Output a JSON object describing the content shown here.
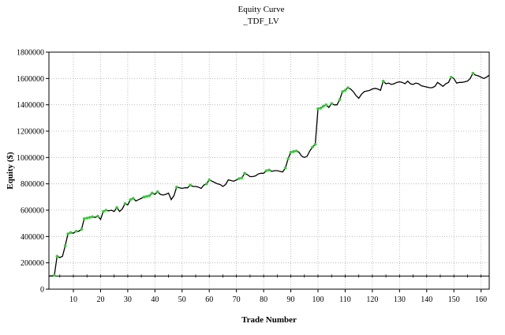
{
  "chart_data": {
    "type": "line",
    "title": "Equity Curve",
    "subtitle": "_TDF_LV",
    "xlabel": "Trade Number",
    "ylabel": "Equity ($)",
    "xlim": [
      1,
      163
    ],
    "ylim": [
      0,
      1800000
    ],
    "x_ticks": [
      10,
      20,
      30,
      40,
      50,
      60,
      70,
      80,
      90,
      100,
      110,
      120,
      130,
      140,
      150,
      160
    ],
    "y_ticks": [
      0,
      200000,
      400000,
      600000,
      800000,
      1000000,
      1200000,
      1400000,
      1600000,
      1800000
    ],
    "grid": true,
    "baseline": 100000,
    "colors": {
      "equity": "#000000",
      "new_high": "#33cc33",
      "grid": "#b0b0b0",
      "baseline": "#000000"
    },
    "series": [
      {
        "values": [
          100000,
          100000,
          105000,
          250000,
          240000,
          250000,
          330000,
          420000,
          430000,
          425000,
          440000,
          440000,
          455000,
          535000,
          540000,
          545000,
          550000,
          545000,
          555000,
          530000,
          590000,
          600000,
          595000,
          600000,
          590000,
          620000,
          590000,
          610000,
          650000,
          640000,
          680000,
          690000,
          670000,
          680000,
          690000,
          700000,
          705000,
          710000,
          730000,
          720000,
          740000,
          720000,
          715000,
          720000,
          730000,
          680000,
          710000,
          775000,
          770000,
          765000,
          770000,
          770000,
          790000,
          780000,
          780000,
          775000,
          765000,
          790000,
          800000,
          830000,
          820000,
          810000,
          800000,
          795000,
          780000,
          795000,
          830000,
          825000,
          820000,
          830000,
          840000,
          845000,
          880000,
          870000,
          855000,
          855000,
          860000,
          875000,
          880000,
          880000,
          900000,
          905000,
          895000,
          900000,
          900000,
          895000,
          890000,
          920000,
          990000,
          1040000,
          1045000,
          1050000,
          1040000,
          1010000,
          1000000,
          1010000,
          1050000,
          1080000,
          1100000,
          1370000,
          1375000,
          1390000,
          1400000,
          1380000,
          1410000,
          1400000,
          1400000,
          1440000,
          1500000,
          1510000,
          1530000,
          1520000,
          1500000,
          1470000,
          1450000,
          1480000,
          1500000,
          1505000,
          1510000,
          1520000,
          1525000,
          1520000,
          1510000,
          1580000,
          1560000,
          1565000,
          1555000,
          1560000,
          1570000,
          1575000,
          1570000,
          1560000,
          1580000,
          1560000,
          1555000,
          1565000,
          1560000,
          1545000,
          1540000,
          1535000,
          1530000,
          1530000,
          1540000,
          1570000,
          1555000,
          1540000,
          1560000,
          1570000,
          1610000,
          1600000,
          1565000,
          1570000,
          1570000,
          1575000,
          1580000,
          1600000,
          1640000,
          1625000,
          1620000,
          1610000,
          1600000,
          1610000,
          1625000
        ]
      }
    ]
  }
}
